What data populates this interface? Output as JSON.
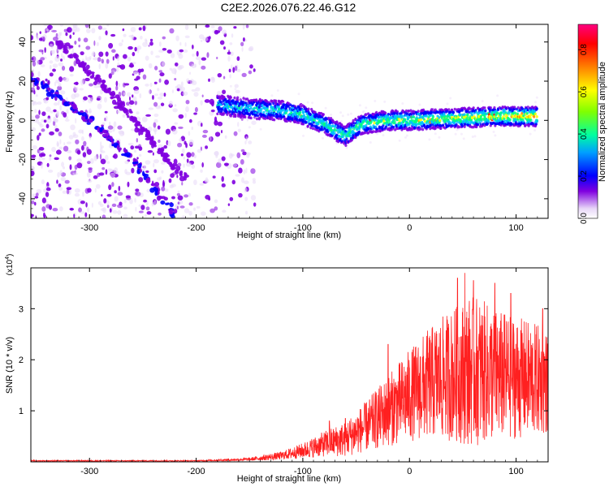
{
  "title": "C2E2.2026.076.22.46.G12",
  "chart_data": [
    {
      "type": "heatmap",
      "name": "spectrogram",
      "xlabel": "Height of straight line (km)",
      "ylabel": "Frequency (Hz)",
      "xlim": [
        -355,
        130
      ],
      "ylim": [
        -50,
        49
      ],
      "xticks": [
        -300,
        -200,
        -100,
        0,
        100
      ],
      "yticks": [
        -40,
        -20,
        0,
        20,
        40
      ],
      "colorbar": {
        "label": "Normalized spectral amplitude",
        "range": [
          0,
          0.92
        ],
        "ticks": [
          0.0,
          0.2,
          0.4,
          0.6,
          0.8
        ],
        "colormap": [
          "#e8d8f8",
          "#8000e0",
          "#0000ff",
          "#00c0ff",
          "#00ff80",
          "#ffff00",
          "#ff8000",
          "#ff0000",
          "#ff0080"
        ]
      },
      "features": {
        "diagonal_track_1": [
          [
            -355,
            22
          ],
          [
            -300,
            0
          ],
          [
            -260,
            -20
          ],
          [
            -220,
            -48
          ]
        ],
        "diagonal_track_2": [
          [
            -330,
            40
          ],
          [
            -290,
            20
          ],
          [
            -250,
            -5
          ],
          [
            -210,
            -30
          ]
        ],
        "main_band": [
          [
            -180,
            8
          ],
          [
            -150,
            6
          ],
          [
            -120,
            5
          ],
          [
            -100,
            3
          ],
          [
            -80,
            -2
          ],
          [
            -60,
            -8
          ],
          [
            -45,
            -2
          ],
          [
            -20,
            0
          ],
          [
            0,
            0
          ],
          [
            40,
            1
          ],
          [
            80,
            2
          ],
          [
            120,
            2
          ]
        ],
        "noise_region_end": -145
      }
    },
    {
      "type": "line",
      "name": "snr",
      "xlabel": "Height of straight line (km)",
      "ylabel": "SNR (10 * v/v)",
      "yunit": "(x10^4)",
      "yunit_base": "(x10",
      "yunit_exp": "4",
      "yunit_close": ")",
      "xlim": [
        -355,
        130
      ],
      "ylim": [
        0,
        3.8
      ],
      "xticks": [
        -300,
        -200,
        -100,
        0,
        100
      ],
      "yticks": [
        1,
        2,
        3
      ],
      "color": "#ff2020",
      "envelope": {
        "x": [
          -355,
          -200,
          -150,
          -120,
          -100,
          -80,
          -60,
          -40,
          -20,
          0,
          20,
          40,
          60,
          80,
          100,
          120,
          130
        ],
        "mean": [
          0.02,
          0.02,
          0.05,
          0.12,
          0.22,
          0.35,
          0.45,
          0.7,
          1.0,
          1.3,
          1.55,
          1.7,
          1.8,
          1.7,
          1.65,
          1.6,
          1.55
        ],
        "amplitude": [
          0.01,
          0.01,
          0.03,
          0.08,
          0.15,
          0.25,
          0.35,
          0.5,
          0.7,
          0.9,
          1.1,
          1.3,
          1.5,
          1.3,
          1.2,
          1.1,
          1.0
        ],
        "peaks": [
          [
            52,
            3.7
          ],
          [
            60,
            3.55
          ],
          [
            45,
            3.6
          ],
          [
            80,
            3.5
          ],
          [
            95,
            3.3
          ],
          [
            125,
            3.0
          ],
          [
            -20,
            2.3
          ],
          [
            -60,
            0.85
          ],
          [
            -75,
            0.8
          ]
        ]
      }
    }
  ]
}
